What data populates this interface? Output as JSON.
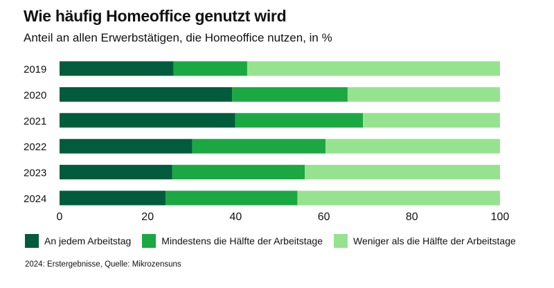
{
  "chart_data": {
    "type": "bar",
    "orientation": "horizontal",
    "stacked": true,
    "title": "Wie häufig Homeoffice genutzt wird",
    "subtitle": "Anteil an allen Erwerbstätigen, die Homeoffice nutzen, in %",
    "categories": [
      "2019",
      "2020",
      "2021",
      "2022",
      "2023",
      "2024"
    ],
    "series": [
      {
        "name": "An jedem Arbeitstag",
        "color": "#005c3c",
        "values": [
          25.9,
          39.2,
          39.9,
          30.1,
          25.6,
          24.1
        ]
      },
      {
        "name": "Mindestens die Hälfte der Arbeitstage",
        "color": "#1ba843",
        "values": [
          16.7,
          26.2,
          29.0,
          30.3,
          30.1,
          29.9
        ]
      },
      {
        "name": "Weniger als die Hälfte der Arbeitstage",
        "color": "#96e38f",
        "values": [
          57.4,
          34.6,
          31.1,
          39.6,
          44.3,
          46.0
        ]
      }
    ],
    "xlim": [
      0,
      100
    ],
    "xticks": [
      "0",
      "20",
      "40",
      "60",
      "80",
      "100"
    ],
    "grid": false,
    "legend": "bottom",
    "note": "2024: Erstergebnisse, Quelle: Mikrozensuns"
  }
}
